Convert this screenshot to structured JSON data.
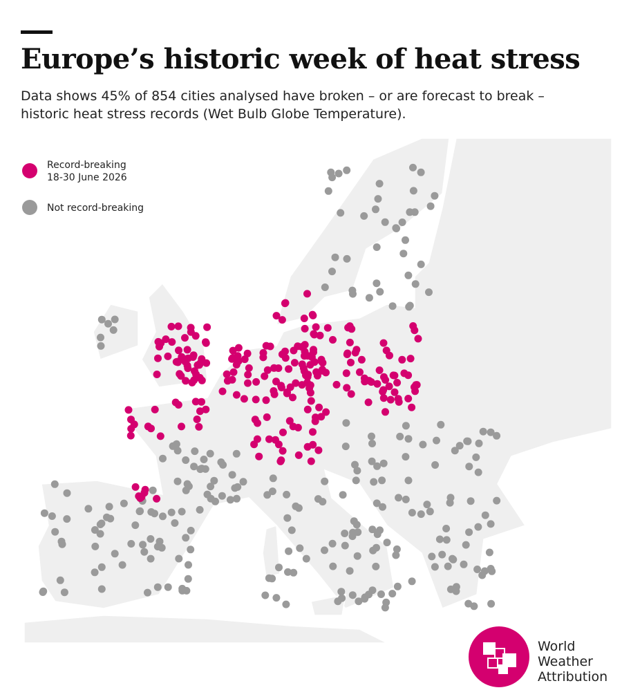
{
  "header": {
    "title": "Europe’s historic week of heat stress",
    "subtitle": "Data shows 45% of 854 cities analysed have broken – or are forecast to break – historic heat stress records (Wet Bulb Globe Temperature)."
  },
  "legend": [
    {
      "label_lines": [
        "Record-breaking",
        "18-30 June 2026"
      ],
      "color": "#d4006f"
    },
    {
      "label_lines": [
        "Not record-breaking"
      ],
      "color": "#9a9a9a"
    }
  ],
  "logo": {
    "lines": [
      "World",
      "Weather",
      "Attribution"
    ],
    "color": "#d4006f"
  }
}
